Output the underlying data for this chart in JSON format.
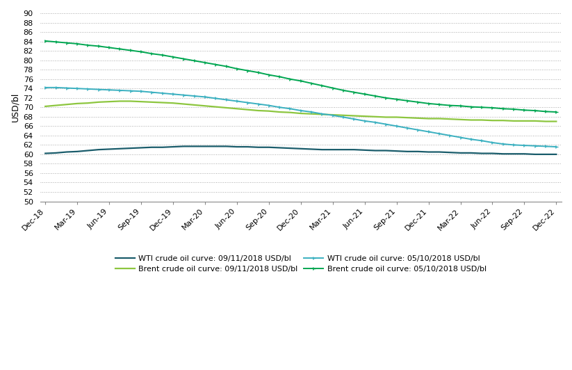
{
  "title": "",
  "ylabel": "USD/bl",
  "ylim": [
    50,
    90
  ],
  "yticks": [
    50,
    52,
    54,
    56,
    58,
    60,
    62,
    64,
    66,
    68,
    70,
    72,
    74,
    76,
    78,
    80,
    82,
    84,
    86,
    88,
    90
  ],
  "x_labels": [
    "Dec-18",
    "Mar-19",
    "Jun-19",
    "Sep-19",
    "Dec-19",
    "Mar-20",
    "Jun-20",
    "Sep-20",
    "Dec-20",
    "Mar-21",
    "Jun-21",
    "Sep-21",
    "Dec-21",
    "Mar-22",
    "Jun-22",
    "Sep-22",
    "Dec-22"
  ],
  "x_tick_indices": [
    0,
    3,
    6,
    9,
    12,
    15,
    18,
    21,
    24,
    27,
    30,
    33,
    36,
    39,
    42,
    45,
    48
  ],
  "series": [
    {
      "label": "WTI crude oil curve: 09/11/2018 USD/bl",
      "color": "#1a5c6b",
      "linewidth": 1.6,
      "marker": "None",
      "linestyle": "-",
      "values": [
        60.2,
        60.3,
        60.5,
        60.6,
        60.8,
        61.0,
        61.1,
        61.2,
        61.3,
        61.4,
        61.5,
        61.5,
        61.6,
        61.7,
        61.7,
        61.7,
        61.7,
        61.7,
        61.6,
        61.6,
        61.5,
        61.5,
        61.4,
        61.3,
        61.2,
        61.1,
        61.0,
        61.0,
        61.0,
        61.0,
        60.9,
        60.8,
        60.8,
        60.7,
        60.6,
        60.6,
        60.5,
        60.5,
        60.4,
        60.3,
        60.3,
        60.2,
        60.2,
        60.1,
        60.1,
        60.1,
        60.0,
        60.0,
        60.0
      ]
    },
    {
      "label": "Brent crude oil curve: 09/11/2018 USD/bl",
      "color": "#8dc63f",
      "linewidth": 1.6,
      "marker": "None",
      "linestyle": "-",
      "values": [
        70.2,
        70.4,
        70.6,
        70.8,
        70.9,
        71.1,
        71.2,
        71.3,
        71.3,
        71.2,
        71.1,
        71.0,
        70.9,
        70.7,
        70.5,
        70.3,
        70.1,
        69.9,
        69.7,
        69.5,
        69.3,
        69.2,
        69.0,
        68.9,
        68.7,
        68.6,
        68.5,
        68.4,
        68.3,
        68.2,
        68.1,
        68.0,
        67.9,
        67.9,
        67.8,
        67.7,
        67.6,
        67.6,
        67.5,
        67.4,
        67.3,
        67.3,
        67.2,
        67.2,
        67.1,
        67.1,
        67.1,
        67.0,
        67.0
      ]
    },
    {
      "label": "WTI crude oil curve: 05/10/2018 USD/bl",
      "color": "#3ab0c0",
      "linewidth": 1.4,
      "marker": "4",
      "markersize": 4,
      "linestyle": "-",
      "values": [
        74.2,
        74.2,
        74.1,
        74.0,
        73.9,
        73.8,
        73.7,
        73.6,
        73.5,
        73.4,
        73.2,
        73.0,
        72.8,
        72.6,
        72.4,
        72.2,
        71.9,
        71.6,
        71.3,
        71.0,
        70.7,
        70.4,
        70.0,
        69.7,
        69.3,
        69.0,
        68.6,
        68.3,
        67.9,
        67.5,
        67.1,
        66.8,
        66.4,
        66.0,
        65.6,
        65.2,
        64.8,
        64.4,
        64.0,
        63.6,
        63.2,
        62.9,
        62.5,
        62.2,
        62.0,
        61.9,
        61.8,
        61.7,
        61.6
      ]
    },
    {
      "label": "Brent crude oil curve: 05/10/2018 USD/bl",
      "color": "#00a651",
      "linewidth": 1.4,
      "marker": "4",
      "markersize": 4,
      "linestyle": "-",
      "values": [
        84.1,
        83.9,
        83.7,
        83.5,
        83.2,
        83.0,
        82.7,
        82.4,
        82.1,
        81.8,
        81.4,
        81.1,
        80.7,
        80.3,
        79.9,
        79.5,
        79.1,
        78.7,
        78.2,
        77.8,
        77.4,
        76.9,
        76.5,
        76.0,
        75.6,
        75.1,
        74.6,
        74.1,
        73.6,
        73.2,
        72.8,
        72.4,
        72.0,
        71.7,
        71.4,
        71.1,
        70.8,
        70.6,
        70.4,
        70.3,
        70.1,
        70.0,
        69.9,
        69.7,
        69.6,
        69.4,
        69.3,
        69.1,
        69.0
      ]
    }
  ],
  "background_color": "#ffffff",
  "grid_color": "#aaaaaa",
  "legend_fontsize": 8,
  "axis_fontsize": 9,
  "tick_fontsize": 8
}
